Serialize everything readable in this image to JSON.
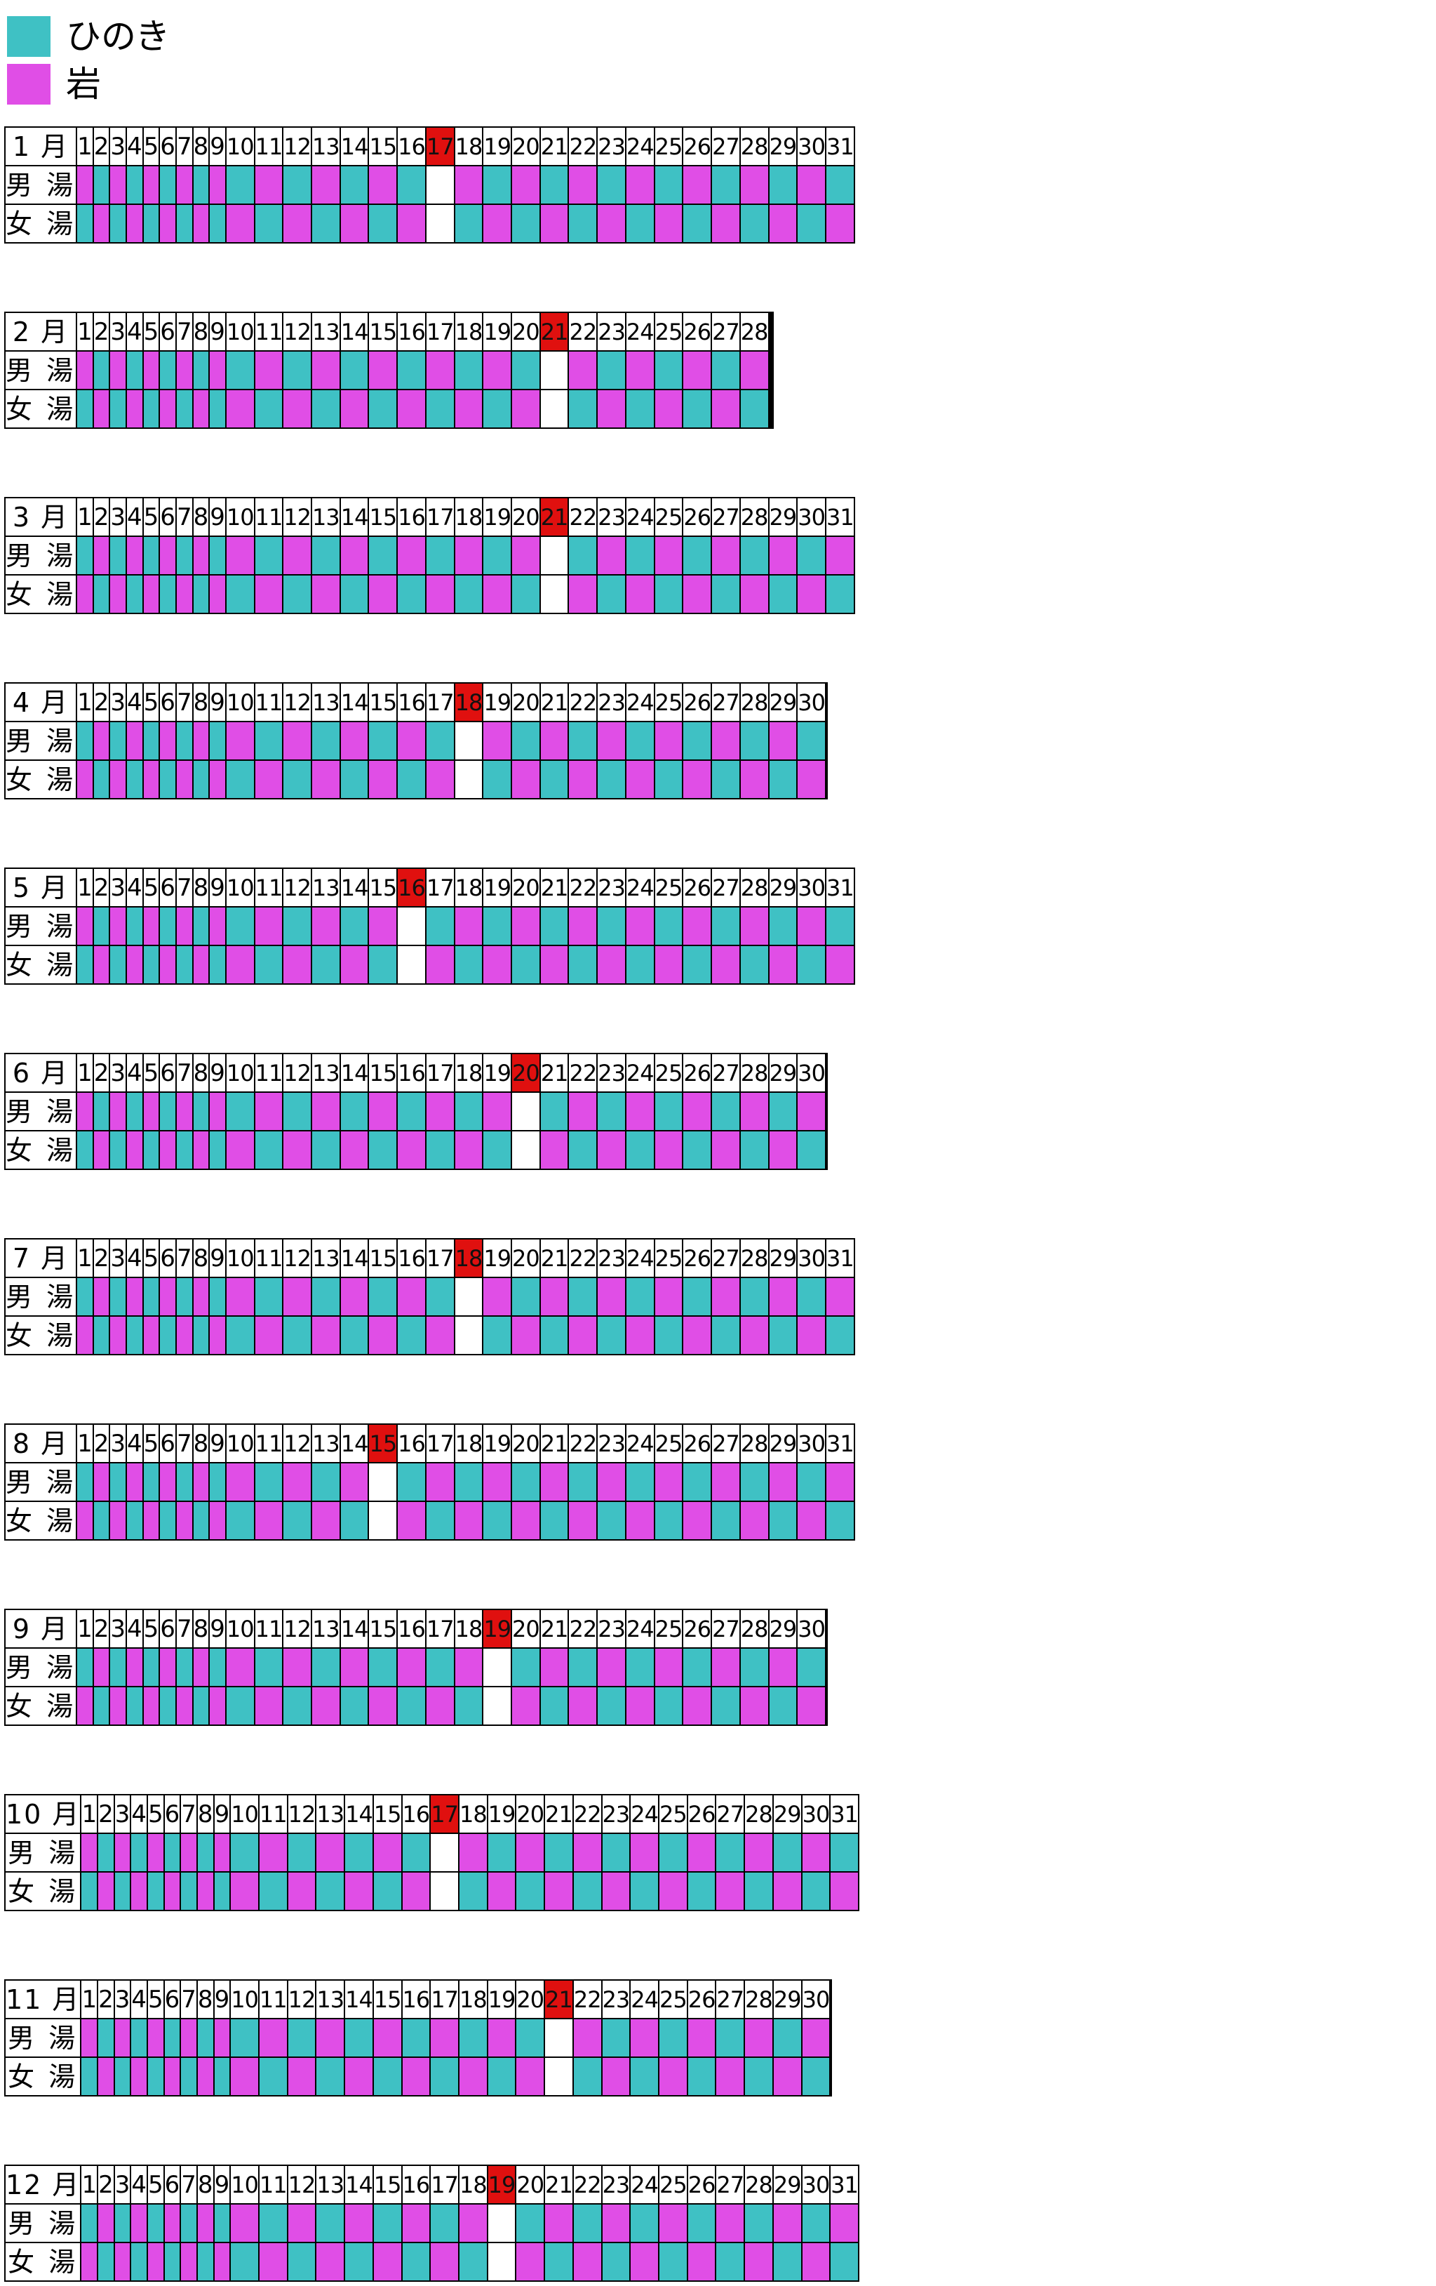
{
  "colors": {
    "hinoki": "#3fc1c4",
    "iwa": "#e04ee6",
    "closed_day_header": "#e0100f",
    "empty": "#ffffff"
  },
  "legend": [
    {
      "key": "hinoki",
      "label": "ひのき",
      "color": "#3fc1c4"
    },
    {
      "key": "iwa",
      "label": "岩",
      "color": "#e04ee6"
    }
  ],
  "row_labels": {
    "men": "男 湯",
    "women": "女 湯"
  },
  "months": [
    {
      "label": "1 月",
      "days": 31,
      "closed": 17,
      "men_start": "iwa"
    },
    {
      "label": "2 月",
      "days": 28,
      "closed": 21,
      "men_start": "iwa"
    },
    {
      "label": "3 月",
      "days": 31,
      "closed": 21,
      "men_start": "hinoki"
    },
    {
      "label": "4 月",
      "days": 30,
      "closed": 18,
      "men_start": "hinoki"
    },
    {
      "label": "5 月",
      "days": 31,
      "closed": 16,
      "men_start": "iwa"
    },
    {
      "label": "6 月",
      "days": 30,
      "closed": 20,
      "men_start": "iwa"
    },
    {
      "label": "7 月",
      "days": 31,
      "closed": 18,
      "men_start": "hinoki"
    },
    {
      "label": "8 月",
      "days": 31,
      "closed": 15,
      "men_start": "hinoki"
    },
    {
      "label": "9 月",
      "days": 30,
      "closed": 19,
      "men_start": "hinoki"
    },
    {
      "label": "10 月",
      "days": 31,
      "closed": 17,
      "men_start": "iwa"
    },
    {
      "label": "11 月",
      "days": 30,
      "closed": 21,
      "men_start": "iwa"
    },
    {
      "label": "12 月",
      "days": 31,
      "closed": 19,
      "men_start": "hinoki"
    }
  ]
}
